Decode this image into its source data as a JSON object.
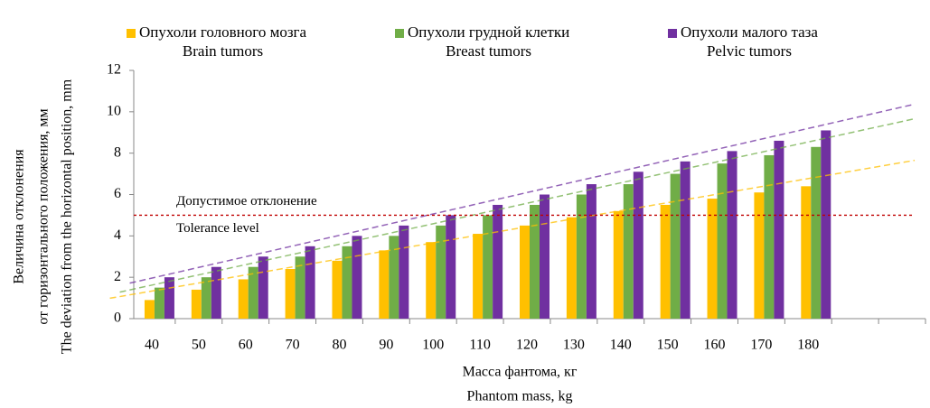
{
  "chart_data": {
    "type": "bar",
    "categories": [
      40,
      50,
      60,
      70,
      80,
      90,
      100,
      110,
      120,
      130,
      140,
      150,
      160,
      170,
      180,
      null,
      null
    ],
    "series": [
      {
        "name": "Опухоли головного мозга",
        "name_en": "Brain tumors",
        "color": "#ffc000",
        "values": [
          0.9,
          1.4,
          1.9,
          2.4,
          2.8,
          3.3,
          3.7,
          4.1,
          4.5,
          4.9,
          5.2,
          5.5,
          5.8,
          6.1,
          6.4,
          null,
          null
        ]
      },
      {
        "name": "Опухоли грудной клетки",
        "name_en": "Breast tumors",
        "color": "#70ad47",
        "values": [
          1.5,
          2.0,
          2.5,
          3.0,
          3.5,
          4.0,
          4.5,
          5.0,
          5.5,
          6.0,
          6.5,
          7.0,
          7.5,
          7.9,
          8.3,
          null,
          null
        ]
      },
      {
        "name": "Опухоли малого таза",
        "name_en": "Pelvic tumors",
        "color": "#7030a0",
        "values": [
          2.0,
          2.5,
          3.0,
          3.5,
          4.0,
          4.5,
          5.0,
          5.5,
          6.0,
          6.5,
          7.1,
          7.6,
          8.1,
          8.6,
          9.1,
          null,
          null
        ]
      }
    ],
    "trendlines": true,
    "reference_line": {
      "value": 5,
      "color": "#c00000",
      "labels": [
        "Допустимое отклонение",
        "Tolerance level"
      ]
    },
    "ylim": [
      0,
      12
    ],
    "yticks": [
      0,
      2,
      4,
      6,
      8,
      10,
      12
    ],
    "y_label": [
      "Величина отклонения",
      "от горизонтального положения, мм",
      "The deviation from the horizontal position, mm"
    ],
    "x_label": [
      "Масса фантома, кг",
      "Phantom mass, kg"
    ],
    "legend": "top"
  }
}
